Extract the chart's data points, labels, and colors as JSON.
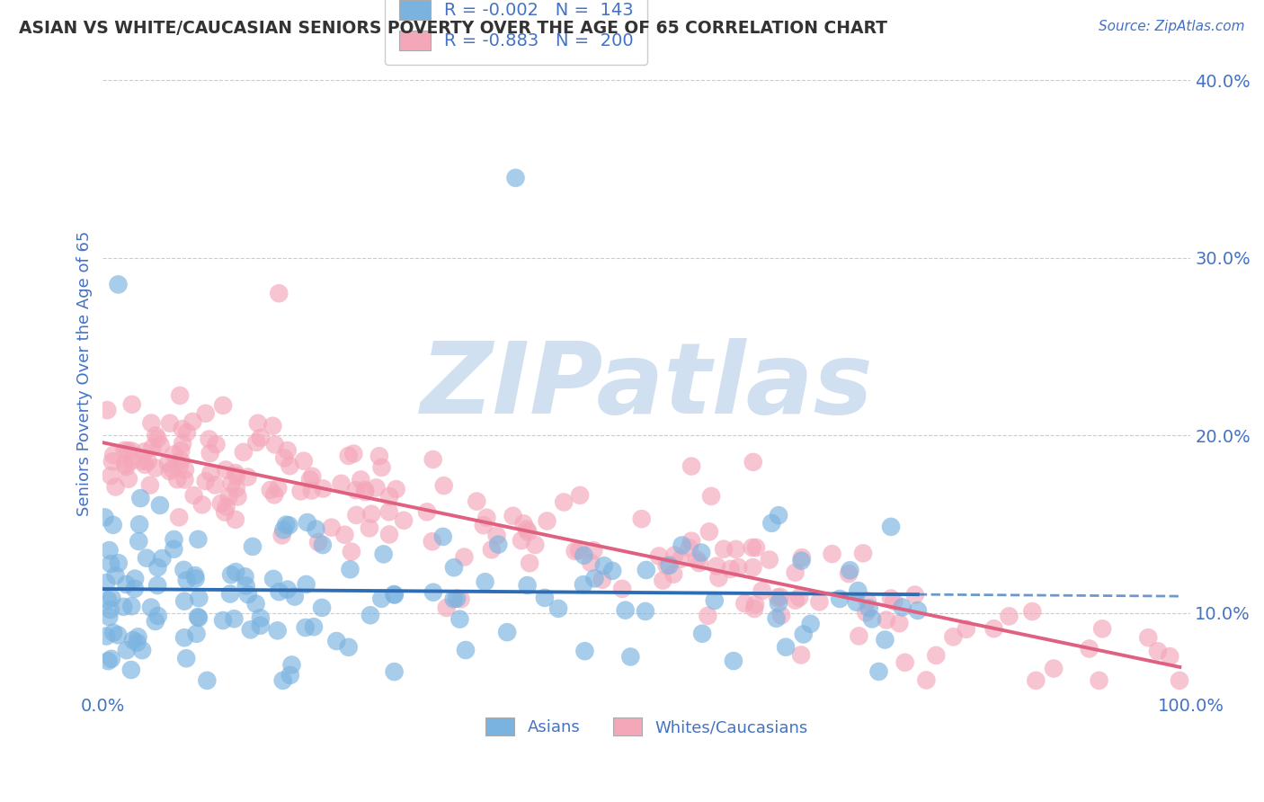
{
  "title": "ASIAN VS WHITE/CAUCASIAN SENIORS POVERTY OVER THE AGE OF 65 CORRELATION CHART",
  "source": "Source: ZipAtlas.com",
  "ylabel": "Seniors Poverty Over the Age of 65",
  "xlim": [
    0,
    1
  ],
  "ylim": [
    0.055,
    0.415
  ],
  "yticks": [
    0.1,
    0.2,
    0.3,
    0.4
  ],
  "ytick_labels": [
    "10.0%",
    "20.0%",
    "30.0%",
    "40.0%"
  ],
  "xticks": [
    0.0,
    1.0
  ],
  "xtick_labels": [
    "0.0%",
    "100.0%"
  ],
  "asian_color": "#7ab3e0",
  "white_color": "#f4a7b9",
  "asian_line_color": "#2e6db4",
  "white_line_color": "#e06080",
  "background_color": "#ffffff",
  "grid_color": "#cccccc",
  "title_color": "#333333",
  "label_color": "#4472c4",
  "watermark": "ZIPatlas",
  "watermark_color": "#d0e0f0",
  "legend_labels": [
    "R = -0.002   N =  143",
    "R = -0.883   N =  200"
  ],
  "bottom_labels": [
    "Asians",
    "Whites/Caucasians"
  ]
}
